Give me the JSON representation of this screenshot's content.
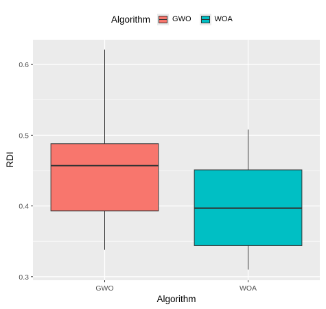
{
  "chart_data": {
    "type": "boxplot",
    "xlabel": "Algorithm",
    "ylabel": "RDI",
    "ylim": [
      0.295,
      0.635
    ],
    "yticks": [
      0.3,
      0.4,
      0.5,
      0.6
    ],
    "ytick_labels": [
      "0.3",
      "0.4",
      "0.5",
      "0.6"
    ],
    "grid": true,
    "legend": {
      "title": "Algorithm",
      "position": "top"
    },
    "categories": [
      "GWO",
      "WOA"
    ],
    "series": [
      {
        "name": "GWO",
        "color": "#F8766D",
        "min": 0.338,
        "q1": 0.393,
        "median": 0.457,
        "q3": 0.488,
        "max": 0.621
      },
      {
        "name": "WOA",
        "color": "#00BFC4",
        "min": 0.31,
        "q1": 0.344,
        "median": 0.397,
        "q3": 0.451,
        "max": 0.508
      }
    ]
  }
}
